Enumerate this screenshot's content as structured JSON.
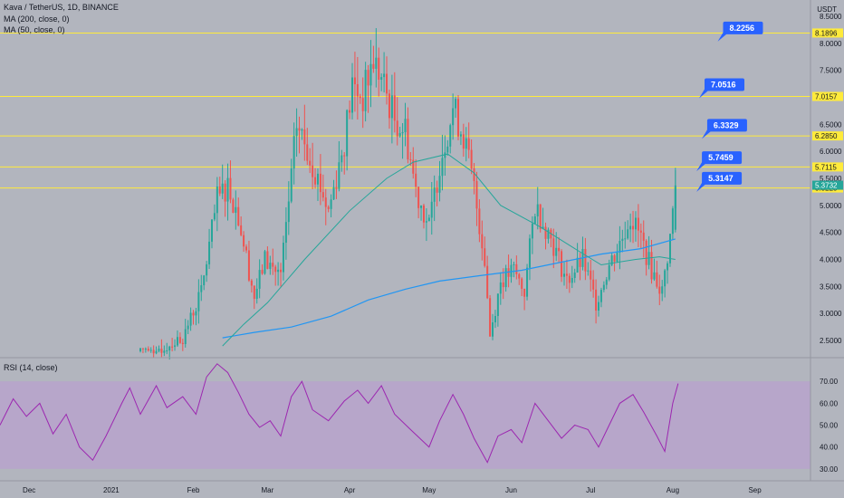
{
  "header": {
    "symbol_line": "Kava / TetherUS, 1D, BINANCE",
    "ma200_label": "MA (200, close, 0)",
    "ma50_label": "MA (50, close, 0)",
    "rsi_label": "RSI (14, close)",
    "currency": "USDT"
  },
  "colors": {
    "background": "#b2b5be",
    "rsi_band": "#b7a3cc",
    "up": "#26a69a",
    "down": "#ef5350",
    "ma50": "#26a69a",
    "ma200": "#2196f3",
    "rsi_line": "#9c27b0",
    "level_line": "#ffeb3b",
    "callout": "#2962ff"
  },
  "chart_data": {
    "type": "candlestick",
    "y_axis_ticks": [
      "8.5000",
      "8.0000",
      "7.5000",
      "7.0000",
      "6.5000",
      "6.0000",
      "5.5000",
      "5.0000",
      "4.5000",
      "4.0000",
      "3.5000",
      "3.0000",
      "2.5000"
    ],
    "y_range": [
      2.2,
      8.8
    ],
    "x_axis_ticks": [
      "Dec",
      "2021",
      "Feb",
      "Mar",
      "Apr",
      "May",
      "Jun",
      "Jul",
      "Aug",
      "Sep"
    ],
    "x_start": "2020-11-20",
    "x_end": "2021-09-22",
    "levels": [
      {
        "value": 8.1896,
        "label": "8.1896"
      },
      {
        "value": 7.0157,
        "label": "7.0157"
      },
      {
        "value": 6.285,
        "label": "6.2850"
      },
      {
        "value": 5.7115,
        "label": "5.7115"
      },
      {
        "value": 5.3225,
        "label": "5.3225"
      }
    ],
    "current_price": {
      "value": 5.3732,
      "label": "5.3732"
    },
    "callouts": [
      {
        "label": "8.2256",
        "date": "2021-08-20",
        "value": 8.4
      },
      {
        "label": "7.0516",
        "date": "2021-08-13",
        "value": 7.35
      },
      {
        "label": "6.3329",
        "date": "2021-08-14",
        "value": 6.6
      },
      {
        "label": "5.7459",
        "date": "2021-08-12",
        "value": 6.0
      },
      {
        "label": "5.3147",
        "date": "2021-08-12",
        "value": 5.62
      }
    ],
    "ohlc_keypoints": [
      {
        "date": "2021-01-20",
        "value": 2.35
      },
      {
        "date": "2021-01-28",
        "value": 2.55
      },
      {
        "date": "2021-02-04",
        "value": 3.4
      },
      {
        "date": "2021-02-10",
        "value": 5.1
      },
      {
        "date": "2021-02-14",
        "value": 5.4
      },
      {
        "date": "2021-02-18",
        "value": 4.8
      },
      {
        "date": "2021-02-24",
        "value": 3.3
      },
      {
        "date": "2021-02-28",
        "value": 4.0
      },
      {
        "date": "2021-03-06",
        "value": 3.7
      },
      {
        "date": "2021-03-10",
        "value": 5.5
      },
      {
        "date": "2021-03-12",
        "value": 6.5
      },
      {
        "date": "2021-03-18",
        "value": 5.8
      },
      {
        "date": "2021-03-24",
        "value": 4.9
      },
      {
        "date": "2021-03-30",
        "value": 6.2
      },
      {
        "date": "2021-04-02",
        "value": 7.2
      },
      {
        "date": "2021-04-06",
        "value": 7.0
      },
      {
        "date": "2021-04-10",
        "value": 7.7
      },
      {
        "date": "2021-04-14",
        "value": 7.2
      },
      {
        "date": "2021-04-18",
        "value": 6.6
      },
      {
        "date": "2021-04-22",
        "value": 6.4
      },
      {
        "date": "2021-04-26",
        "value": 5.3
      },
      {
        "date": "2021-05-01",
        "value": 4.6
      },
      {
        "date": "2021-05-05",
        "value": 5.8
      },
      {
        "date": "2021-05-10",
        "value": 6.8
      },
      {
        "date": "2021-05-14",
        "value": 6.3
      },
      {
        "date": "2021-05-18",
        "value": 5.3
      },
      {
        "date": "2021-05-22",
        "value": 4.0
      },
      {
        "date": "2021-05-24",
        "value": 2.6
      },
      {
        "date": "2021-05-28",
        "value": 3.6
      },
      {
        "date": "2021-06-02",
        "value": 3.8
      },
      {
        "date": "2021-06-06",
        "value": 3.4
      },
      {
        "date": "2021-06-10",
        "value": 5.0
      },
      {
        "date": "2021-06-16",
        "value": 4.4
      },
      {
        "date": "2021-06-22",
        "value": 3.6
      },
      {
        "date": "2021-06-28",
        "value": 4.0
      },
      {
        "date": "2021-07-03",
        "value": 3.2
      },
      {
        "date": "2021-07-08",
        "value": 3.9
      },
      {
        "date": "2021-07-12",
        "value": 4.3
      },
      {
        "date": "2021-07-16",
        "value": 4.8
      },
      {
        "date": "2021-07-20",
        "value": 4.4
      },
      {
        "date": "2021-07-24",
        "value": 3.8
      },
      {
        "date": "2021-07-28",
        "value": 3.4
      },
      {
        "date": "2021-07-31",
        "value": 4.4
      },
      {
        "date": "2021-08-02",
        "value": 5.37
      }
    ],
    "ma50_keypoints": [
      {
        "date": "2021-02-12",
        "value": 2.4
      },
      {
        "date": "2021-02-20",
        "value": 2.8
      },
      {
        "date": "2021-03-01",
        "value": 3.2
      },
      {
        "date": "2021-03-15",
        "value": 4.0
      },
      {
        "date": "2021-04-01",
        "value": 4.9
      },
      {
        "date": "2021-04-15",
        "value": 5.5
      },
      {
        "date": "2021-04-25",
        "value": 5.8
      },
      {
        "date": "2021-05-08",
        "value": 5.95
      },
      {
        "date": "2021-05-18",
        "value": 5.6
      },
      {
        "date": "2021-05-28",
        "value": 5.0
      },
      {
        "date": "2021-06-12",
        "value": 4.6
      },
      {
        "date": "2021-06-25",
        "value": 4.2
      },
      {
        "date": "2021-07-05",
        "value": 3.9
      },
      {
        "date": "2021-07-18",
        "value": 4.0
      },
      {
        "date": "2021-07-27",
        "value": 4.05
      },
      {
        "date": "2021-08-02",
        "value": 4.0
      }
    ],
    "ma200_keypoints": [
      {
        "date": "2021-02-12",
        "value": 2.55
      },
      {
        "date": "2021-02-24",
        "value": 2.65
      },
      {
        "date": "2021-03-10",
        "value": 2.75
      },
      {
        "date": "2021-03-25",
        "value": 2.95
      },
      {
        "date": "2021-04-08",
        "value": 3.25
      },
      {
        "date": "2021-04-22",
        "value": 3.45
      },
      {
        "date": "2021-05-05",
        "value": 3.6
      },
      {
        "date": "2021-05-20",
        "value": 3.7
      },
      {
        "date": "2021-06-05",
        "value": 3.8
      },
      {
        "date": "2021-06-20",
        "value": 3.95
      },
      {
        "date": "2021-07-05",
        "value": 4.1
      },
      {
        "date": "2021-07-20",
        "value": 4.2
      },
      {
        "date": "2021-08-02",
        "value": 4.38
      }
    ],
    "rsi": {
      "y_ticks": [
        "70.00",
        "60.00",
        "50.00",
        "40.00",
        "30.00"
      ],
      "y_range": [
        25,
        80
      ],
      "band": [
        30,
        70
      ],
      "keypoints": [
        {
          "date": "2020-11-20",
          "value": 50
        },
        {
          "date": "2020-11-25",
          "value": 62
        },
        {
          "date": "2020-11-30",
          "value": 54
        },
        {
          "date": "2020-12-05",
          "value": 60
        },
        {
          "date": "2020-12-10",
          "value": 46
        },
        {
          "date": "2020-12-15",
          "value": 55
        },
        {
          "date": "2020-12-20",
          "value": 40
        },
        {
          "date": "2020-12-25",
          "value": 34
        },
        {
          "date": "2020-12-30",
          "value": 45
        },
        {
          "date": "2021-01-05",
          "value": 60
        },
        {
          "date": "2021-01-08",
          "value": 67
        },
        {
          "date": "2021-01-12",
          "value": 55
        },
        {
          "date": "2021-01-18",
          "value": 68
        },
        {
          "date": "2021-01-22",
          "value": 58
        },
        {
          "date": "2021-01-28",
          "value": 63
        },
        {
          "date": "2021-02-02",
          "value": 55
        },
        {
          "date": "2021-02-06",
          "value": 72
        },
        {
          "date": "2021-02-10",
          "value": 78
        },
        {
          "date": "2021-02-14",
          "value": 74
        },
        {
          "date": "2021-02-18",
          "value": 65
        },
        {
          "date": "2021-02-22",
          "value": 55
        },
        {
          "date": "2021-02-26",
          "value": 49
        },
        {
          "date": "2021-03-02",
          "value": 52
        },
        {
          "date": "2021-03-06",
          "value": 45
        },
        {
          "date": "2021-03-10",
          "value": 63
        },
        {
          "date": "2021-03-14",
          "value": 70
        },
        {
          "date": "2021-03-18",
          "value": 57
        },
        {
          "date": "2021-03-24",
          "value": 52
        },
        {
          "date": "2021-03-30",
          "value": 61
        },
        {
          "date": "2021-04-04",
          "value": 66
        },
        {
          "date": "2021-04-08",
          "value": 60
        },
        {
          "date": "2021-04-13",
          "value": 68
        },
        {
          "date": "2021-04-18",
          "value": 55
        },
        {
          "date": "2021-04-24",
          "value": 48
        },
        {
          "date": "2021-05-01",
          "value": 40
        },
        {
          "date": "2021-05-05",
          "value": 52
        },
        {
          "date": "2021-05-10",
          "value": 64
        },
        {
          "date": "2021-05-14",
          "value": 55
        },
        {
          "date": "2021-05-18",
          "value": 44
        },
        {
          "date": "2021-05-23",
          "value": 33
        },
        {
          "date": "2021-05-27",
          "value": 45
        },
        {
          "date": "2021-06-01",
          "value": 48
        },
        {
          "date": "2021-06-05",
          "value": 42
        },
        {
          "date": "2021-06-10",
          "value": 60
        },
        {
          "date": "2021-06-15",
          "value": 52
        },
        {
          "date": "2021-06-20",
          "value": 44
        },
        {
          "date": "2021-06-25",
          "value": 50
        },
        {
          "date": "2021-06-30",
          "value": 48
        },
        {
          "date": "2021-07-04",
          "value": 40
        },
        {
          "date": "2021-07-08",
          "value": 50
        },
        {
          "date": "2021-07-12",
          "value": 60
        },
        {
          "date": "2021-07-17",
          "value": 64
        },
        {
          "date": "2021-07-21",
          "value": 56
        },
        {
          "date": "2021-07-26",
          "value": 45
        },
        {
          "date": "2021-07-29",
          "value": 38
        },
        {
          "date": "2021-08-01",
          "value": 60
        },
        {
          "date": "2021-08-03",
          "value": 69
        }
      ]
    }
  }
}
